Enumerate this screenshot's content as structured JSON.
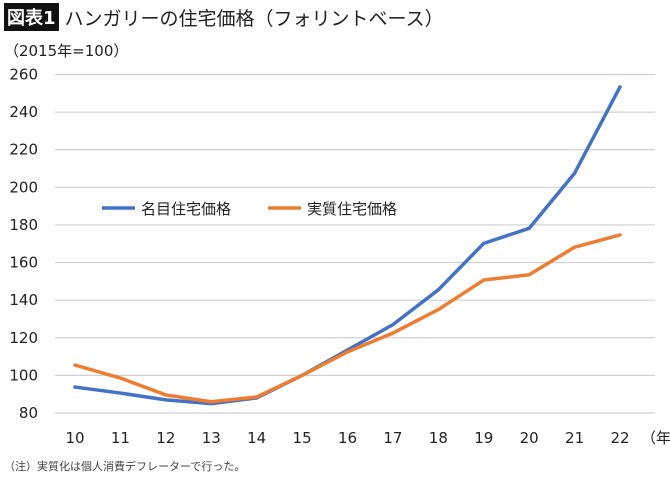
{
  "header": {
    "badge": "図表1",
    "title": "ハンガリーの住宅価格（フォリントベース）"
  },
  "unit_label": "（2015年=100）",
  "note": "（注）実質化は個人消費デフレーターで行った。",
  "chart_data": {
    "type": "line",
    "title": "ハンガリーの住宅価格（フォリントベース）",
    "ylabel": "（2015年=100）",
    "xlabel": "（年）",
    "x": [
      "10",
      "11",
      "12",
      "13",
      "14",
      "15",
      "16",
      "17",
      "18",
      "19",
      "20",
      "21",
      "22"
    ],
    "x_unit": "（年）",
    "ylim": [
      80,
      260
    ],
    "yticks": [
      80,
      100,
      120,
      140,
      160,
      180,
      200,
      220,
      240,
      260
    ],
    "grid": true,
    "legend_position": "center-left",
    "series": [
      {
        "name": "名目住宅価格",
        "color": "#4472C4",
        "values": [
          93.8,
          90.6,
          87,
          85,
          88,
          100,
          113.5,
          127,
          145.5,
          170.2,
          178.2,
          207.5,
          253.4
        ]
      },
      {
        "name": "実質住宅価格",
        "color": "#ED7D31",
        "values": [
          105.5,
          98.6,
          89.6,
          86,
          88.5,
          100,
          112.5,
          122.5,
          135,
          150.7,
          153.5,
          168.2,
          174.7
        ]
      }
    ]
  }
}
